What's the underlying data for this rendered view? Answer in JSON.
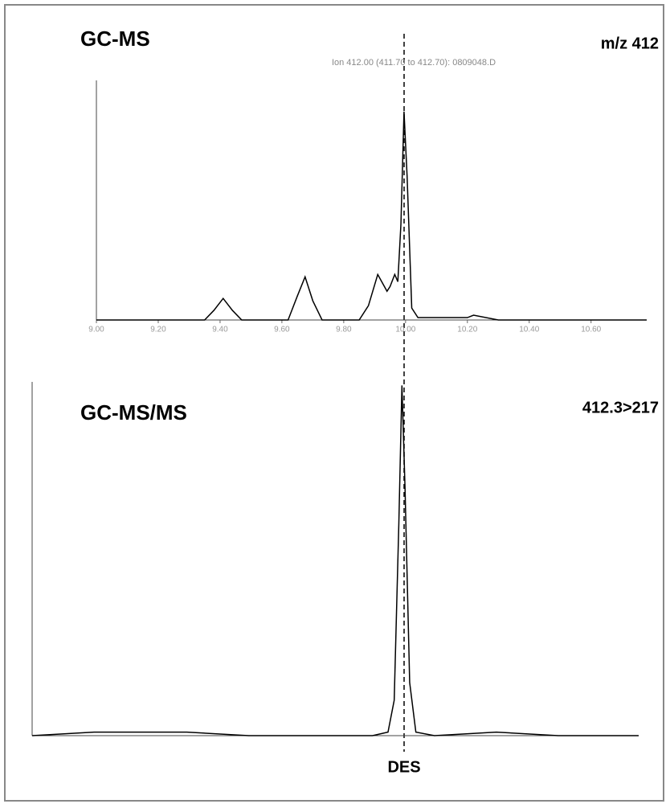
{
  "chart_data": [
    {
      "type": "line",
      "title": "GC-MS",
      "subtitle": "m/z 412",
      "annotation": "Ion 412.00 (411.70 to 412.70): 0809048.D",
      "x": [
        9.0,
        9.35,
        9.38,
        9.41,
        9.44,
        9.47,
        9.62,
        9.65,
        9.675,
        9.7,
        9.73,
        9.85,
        9.88,
        9.91,
        9.94,
        9.95,
        9.965,
        9.975,
        9.985,
        9.995,
        10.005,
        10.02,
        10.04,
        10.2,
        10.22,
        10.3,
        10.78
      ],
      "series": [
        {
          "color": "#000000",
          "values": [
            0,
            0,
            4,
            9,
            4,
            0,
            0,
            10,
            18,
            8,
            0,
            0,
            6,
            19,
            12,
            14,
            19,
            16,
            40,
            87,
            60,
            5,
            1,
            1,
            2,
            0,
            0
          ]
        }
      ],
      "xlim": [
        9.0,
        10.78
      ],
      "xticks": [
        {
          "value": 9.0,
          "label": "9.00"
        },
        {
          "value": 9.2,
          "label": "9.20"
        },
        {
          "value": 9.4,
          "label": "9.40"
        },
        {
          "value": 9.6,
          "label": "9.60"
        },
        {
          "value": 9.8,
          "label": "9.80"
        },
        {
          "value": 10.0,
          "label": "10.00"
        },
        {
          "value": 10.2,
          "label": "10.20"
        },
        {
          "value": 10.4,
          "label": "10.40"
        },
        {
          "value": 10.6,
          "label": "10.60"
        }
      ],
      "ylim": [
        0,
        100
      ]
    },
    {
      "type": "line",
      "title": "GC-MS/MS",
      "subtitle": "412.3>217",
      "annotation": "DES",
      "x": [
        8.8,
        9.0,
        9.3,
        9.5,
        9.7,
        9.9,
        9.95,
        9.97,
        9.985,
        9.995,
        10.005,
        10.02,
        10.04,
        10.1,
        10.3,
        10.5,
        10.76
      ],
      "series": [
        {
          "color": "#000000",
          "values": [
            0,
            1,
            1,
            0,
            0,
            0,
            1,
            10,
            60,
            99,
            70,
            15,
            1,
            0,
            1,
            0,
            0
          ]
        }
      ],
      "xlim": [
        8.8,
        10.76
      ],
      "ylim": [
        0,
        100
      ]
    }
  ]
}
